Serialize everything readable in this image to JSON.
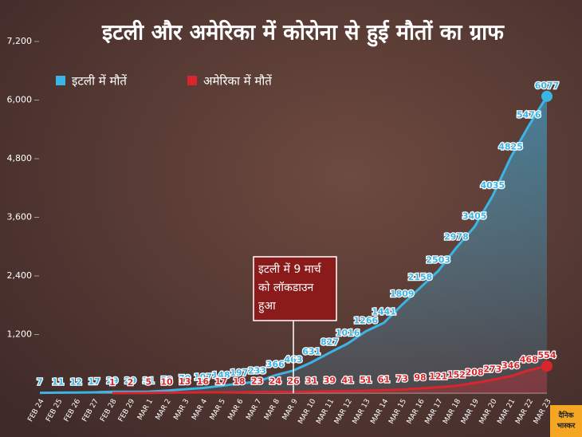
{
  "chart_data": {
    "type": "line",
    "title": "इटली और अमेरिका में कोरोना से हुई मौतों का ग्राफ",
    "categories": [
      "FEB 24",
      "FEB 25",
      "FEB 26",
      "FEB 27",
      "FEB 28",
      "FEB 29",
      "MAR 1",
      "MAR 2",
      "MAR 3",
      "MAR 4",
      "MAR 5",
      "MAR 6",
      "MAR 7",
      "MAR 8",
      "MAR 9",
      "MAR 10",
      "MAR 11",
      "MAR 12",
      "MAR 13",
      "MAR 14",
      "MAR 15",
      "MAR 16",
      "MAR 17",
      "MAR 18",
      "MAR 19",
      "MAR 20",
      "MAR 21",
      "MAR 22",
      "MAR 23"
    ],
    "series": [
      {
        "name": "इटली में मौतें",
        "color": "#3bb4e6",
        "values": [
          7,
          11,
          12,
          17,
          29,
          29,
          31,
          52,
          79,
          107,
          148,
          197,
          233,
          366,
          463,
          631,
          827,
          1016,
          1266,
          1441,
          1809,
          2158,
          2503,
          2978,
          3405,
          4035,
          4825,
          5476,
          6077
        ]
      },
      {
        "name": "अमेरिका में मौतें",
        "color": "#d9262c",
        "values": [
          null,
          null,
          null,
          null,
          1,
          2,
          5,
          10,
          13,
          16,
          17,
          18,
          23,
          24,
          26,
          31,
          39,
          41,
          51,
          61,
          73,
          98,
          121,
          152,
          208,
          273,
          346,
          468,
          554
        ]
      }
    ],
    "ylim": [
      0,
      7200
    ],
    "yticks": [
      {
        "value": 1200,
        "label": "1,200"
      },
      {
        "value": 2400,
        "label": "2,400"
      },
      {
        "value": 3600,
        "label": "3,600"
      },
      {
        "value": 4800,
        "label": "4,800"
      },
      {
        "value": 6000,
        "label": "6,000"
      },
      {
        "value": 7200,
        "label": "7,200"
      }
    ],
    "annotation": [
      "इटली में 9 मार्च",
      "को लॉकडाउन",
      "हुआ"
    ],
    "legend": "top-left"
  },
  "logo": [
    "दैनिक",
    "भास्कर"
  ]
}
